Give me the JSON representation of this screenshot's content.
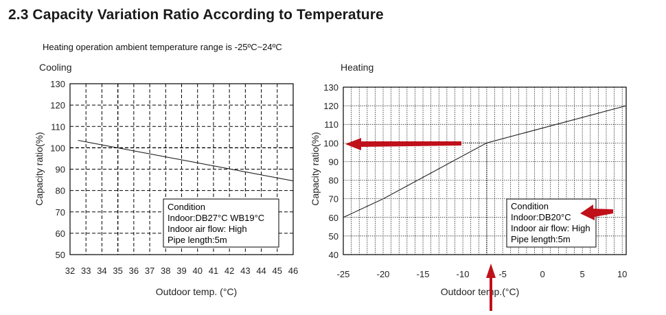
{
  "page": {
    "title": "2.3 Capacity Variation Ratio According to Temperature",
    "subtitle": "Heating operation ambient temperature range is -25ºC~24ºC"
  },
  "colors": {
    "accent": "#c0101a",
    "line": "#222222",
    "grid": "#000000"
  },
  "chart_data": [
    {
      "type": "line",
      "title": "Cooling",
      "xlabel": "Outdoor temp. (°C)",
      "ylabel": "Capacity ratio(%)",
      "xlim": [
        32,
        46
      ],
      "ylim": [
        50,
        130
      ],
      "x_ticks": [
        32,
        33,
        34,
        35,
        36,
        37,
        38,
        39,
        40,
        41,
        42,
        43,
        44,
        45,
        46
      ],
      "y_ticks": [
        50,
        60,
        70,
        80,
        90,
        100,
        110,
        120,
        130
      ],
      "grid": "dashed",
      "series": [
        {
          "name": "Cooling capacity",
          "x": [
            32.5,
            46
          ],
          "y": [
            103.5,
            84.5
          ]
        }
      ],
      "reference_lines": [
        {
          "axis": "x",
          "value": 35
        },
        {
          "axis": "y",
          "value": 100
        }
      ],
      "condition_box": {
        "lines": [
          "Condition",
          "Indoor:DB27°C WB19°C",
          "Indoor air flow: High",
          "Pipe length:5m"
        ]
      }
    },
    {
      "type": "line",
      "title": "Heating",
      "xlabel": "Outdoor temp.(°C)",
      "ylabel": "Capacity ratio(%)",
      "xlim": [
        -25,
        10.5
      ],
      "ylim": [
        40,
        130
      ],
      "x_ticks": [
        -25,
        -20,
        -15,
        -10,
        -5,
        0,
        5,
        10
      ],
      "y_ticks": [
        40,
        50,
        60,
        70,
        80,
        90,
        100,
        110,
        120,
        130
      ],
      "grid": "dotted",
      "series": [
        {
          "name": "Heating capacity",
          "x": [
            -25,
            -20,
            -7,
            10.5
          ],
          "y": [
            60,
            70,
            100,
            120
          ]
        }
      ],
      "reference_lines": [
        {
          "axis": "x",
          "value": -7,
          "to": 100
        },
        {
          "axis": "y",
          "value": 100,
          "from": -10,
          "to": -7
        }
      ],
      "annotations": [
        {
          "type": "arrow",
          "label": "points to 100% capacity"
        },
        {
          "type": "arrow",
          "label": "points up to -7°C"
        },
        {
          "type": "arrow",
          "label": "points to Indoor:DB20°C"
        }
      ],
      "condition_box": {
        "lines": [
          "Condition",
          "Indoor:DB20°C",
          "Indoor air flow: High",
          "Pipe length:5m"
        ]
      }
    }
  ]
}
